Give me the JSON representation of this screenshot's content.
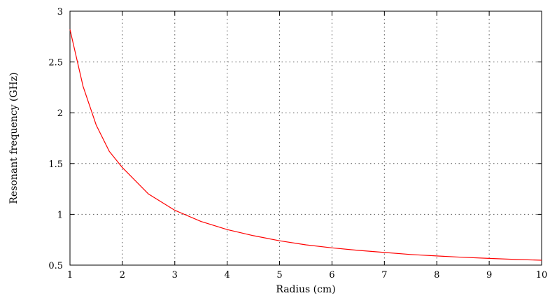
{
  "chart_data": {
    "type": "line",
    "title": "",
    "xlabel": "Radius (cm)",
    "ylabel": "Resonant frequency (GHz)",
    "xlim": [
      1,
      10
    ],
    "ylim": [
      0.5,
      3
    ],
    "xticks": [
      1,
      2,
      3,
      4,
      5,
      6,
      7,
      8,
      9,
      10
    ],
    "xtick_labels": [
      "1",
      "2",
      "3",
      "4",
      "5",
      "6",
      "7",
      "8",
      "9",
      "10"
    ],
    "yticks": [
      0.5,
      1,
      1.5,
      2,
      2.5,
      3
    ],
    "ytick_labels": [
      "0.5",
      "1",
      "1.5",
      "2",
      "2.5",
      "3"
    ],
    "grid": true,
    "legend": "none",
    "series": [
      {
        "color": "#ff0000",
        "x": [
          1,
          1.25,
          1.5,
          1.75,
          2,
          2.5,
          3,
          3.5,
          4,
          4.5,
          5,
          5.5,
          6,
          6.5,
          7,
          7.5,
          8,
          8.5,
          9,
          9.5,
          10
        ],
        "y": [
          2.82,
          2.26,
          1.88,
          1.62,
          1.46,
          1.2,
          1.04,
          0.93,
          0.85,
          0.79,
          0.74,
          0.7,
          0.67,
          0.645,
          0.625,
          0.605,
          0.59,
          0.577,
          0.566,
          0.556,
          0.548
        ]
      }
    ]
  }
}
